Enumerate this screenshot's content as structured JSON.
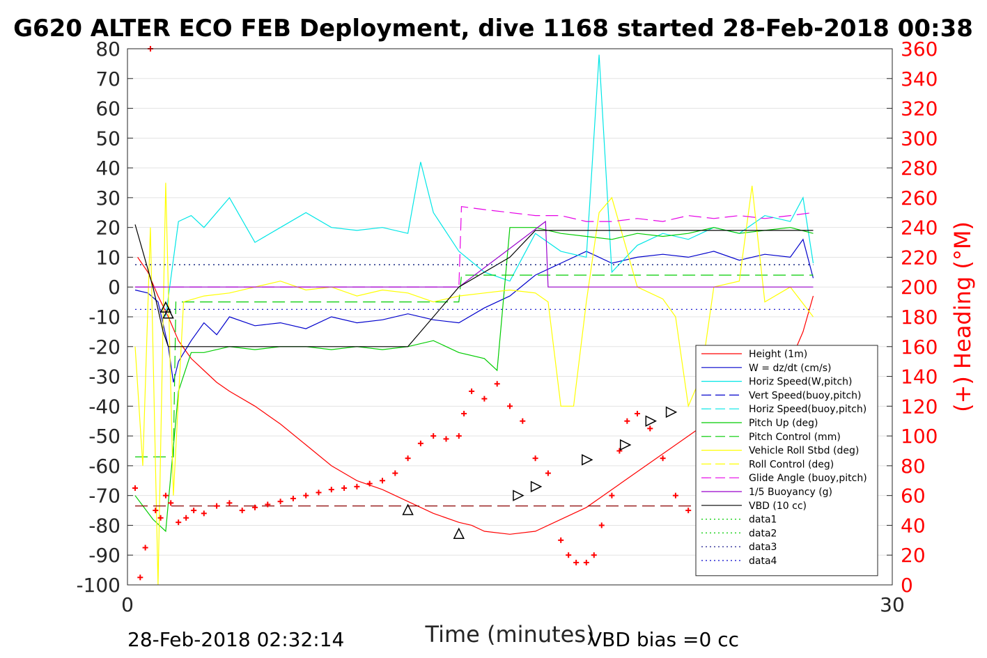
{
  "chart_data": {
    "type": "line",
    "title": "G620 ALTER ECO FEB Deployment, dive 1168 started 28-Feb-2018 00:38",
    "xlabel": "Time (minutes)",
    "ylabel_right": "(+) Heading (°M)",
    "footer_left": "28-Feb-2018 02:32:14",
    "footer_right": "VBD bias =0 cc",
    "xlim": [
      0,
      30
    ],
    "ylim": [
      -100,
      80
    ],
    "ylim_right": [
      0,
      360
    ],
    "x_ticks": [
      "0",
      "30"
    ],
    "y_ticks": [
      "80",
      "70",
      "60",
      "50",
      "40",
      "30",
      "20",
      "10",
      "0",
      "-10",
      "-20",
      "-30",
      "-40",
      "-50",
      "-60",
      "-70",
      "-80",
      "-90",
      "-100"
    ],
    "y_ticks_right": [
      "360",
      "340",
      "320",
      "300",
      "280",
      "260",
      "240",
      "220",
      "200",
      "180",
      "160",
      "140",
      "120",
      "100",
      "80",
      "60",
      "40",
      "20",
      "0"
    ],
    "grid": "horizontal",
    "legend_position": "bottom-right",
    "legend": [
      {
        "label": "Height (1m)",
        "color": "#ff0000",
        "dash": "solid"
      },
      {
        "label": "W = dz/dt (cm/s)",
        "color": "#0000cc",
        "dash": "solid"
      },
      {
        "label": "Horiz Speed(W,pitch)",
        "color": "#00e6e6",
        "dash": "solid"
      },
      {
        "label": "Vert Speed(buoy,pitch)",
        "color": "#0000cc",
        "dash": "dashed"
      },
      {
        "label": "Horiz Speed(buoy,pitch)",
        "color": "#00e6e6",
        "dash": "dashed"
      },
      {
        "label": "Pitch Up (deg)",
        "color": "#00cc00",
        "dash": "solid"
      },
      {
        "label": "Pitch Control (mm)",
        "color": "#00cc00",
        "dash": "dashed"
      },
      {
        "label": "Vehicle Roll Stbd (deg)",
        "color": "#ffff00",
        "dash": "solid"
      },
      {
        "label": "Roll Control (deg)",
        "color": "#ffff00",
        "dash": "dashed"
      },
      {
        "label": "Glide Angle (buoy,pitch)",
        "color": "#e600e6",
        "dash": "dashed"
      },
      {
        "label": "1/5 Buoyancy (g)",
        "color": "#9900cc",
        "dash": "solid"
      },
      {
        "label": "VBD (10 cc)",
        "color": "#000000",
        "dash": "solid"
      },
      {
        "label": "data1",
        "color": "#00cc00",
        "dash": "dotted"
      },
      {
        "label": "data2",
        "color": "#00cc00",
        "dash": "dotted"
      },
      {
        "label": "data3",
        "color": "#000080",
        "dash": "dotted"
      },
      {
        "label": "data4",
        "color": "#0000cc",
        "dash": "dotted"
      }
    ],
    "series": [
      {
        "name": "Height (1m)",
        "color": "#ff0000",
        "dash": "solid",
        "x": [
          0.4,
          0.8,
          1.2,
          1.6,
          2.0,
          2.5,
          3.0,
          3.5,
          4.0,
          5.0,
          6.0,
          7.0,
          8.0,
          9.0,
          10.0,
          11.0,
          12.0,
          13.0,
          13.5,
          14.0,
          15.0,
          16.0,
          17.0,
          18.0,
          19.0,
          20.0,
          21.0,
          22.0,
          23.0,
          24.0,
          25.0,
          26.0,
          26.5,
          26.9
        ],
        "y": [
          10,
          5,
          -3,
          -10,
          -18,
          -24,
          -28,
          -32,
          -35,
          -40,
          -46,
          -53,
          -60,
          -65,
          -68,
          -72,
          -76,
          -79,
          -80,
          -82,
          -83,
          -82,
          -78,
          -74,
          -68,
          -62,
          -56,
          -50,
          -44,
          -38,
          -32,
          -25,
          -15,
          -3
        ]
      },
      {
        "name": "W = dz/dt (cm/s)",
        "color": "#0000cc",
        "dash": "solid",
        "x": [
          0.3,
          0.8,
          1.2,
          1.6,
          1.8,
          2.0,
          2.5,
          3.0,
          3.5,
          4.0,
          5.0,
          6.0,
          7.0,
          8.0,
          9.0,
          10.0,
          11.0,
          12.0,
          13.0,
          14.0,
          15.0,
          16.0,
          17.0,
          18.0,
          19.0,
          20.0,
          21.0,
          22.0,
          23.0,
          24.0,
          25.0,
          26.0,
          26.5,
          26.9
        ],
        "y": [
          -1,
          -2,
          -5,
          -20,
          -32,
          -25,
          -18,
          -12,
          -16,
          -10,
          -13,
          -12,
          -14,
          -10,
          -12,
          -11,
          -9,
          -11,
          -12,
          -7,
          -3,
          4,
          8,
          12,
          8,
          10,
          11,
          10,
          12,
          9,
          11,
          10,
          16,
          3
        ]
      },
      {
        "name": "Horiz Speed(W,pitch)",
        "color": "#00e6e6",
        "dash": "solid",
        "x": [
          1.5,
          2.0,
          2.5,
          3.0,
          4.0,
          5.0,
          6.0,
          7.0,
          8.0,
          9.0,
          10.0,
          11.0,
          11.5,
          12.0,
          13.0,
          14.0,
          15.0,
          16.0,
          17.0,
          18.0,
          18.5,
          19.0,
          20.0,
          21.0,
          22.0,
          23.0,
          24.0,
          25.0,
          26.0,
          26.5,
          26.9
        ],
        "y": [
          -10,
          22,
          24,
          20,
          30,
          15,
          20,
          25,
          20,
          19,
          20,
          18,
          42,
          25,
          12,
          5,
          2,
          18,
          12,
          10,
          78,
          5,
          14,
          18,
          16,
          20,
          18,
          24,
          22,
          30,
          8
        ]
      },
      {
        "name": "Pitch Up (deg)",
        "color": "#00cc00",
        "dash": "solid",
        "x": [
          0.3,
          1.0,
          1.5,
          2.0,
          2.5,
          3.0,
          4.0,
          5.0,
          6.0,
          7.0,
          8.0,
          9.0,
          10.0,
          11.0,
          12.0,
          13.0,
          14.0,
          14.5,
          15.0,
          16.0,
          17.0,
          18.0,
          19.0,
          20.0,
          21.0,
          22.0,
          23.0,
          24.0,
          25.0,
          26.0,
          26.9
        ],
        "y": [
          -70,
          -78,
          -82,
          -35,
          -22,
          -22,
          -20,
          -21,
          -20,
          -20,
          -21,
          -20,
          -21,
          -20,
          -18,
          -22,
          -24,
          -28,
          20,
          20,
          18,
          17,
          16,
          18,
          17,
          18,
          20,
          18,
          19,
          20,
          18
        ]
      },
      {
        "name": "Pitch Control (mm)",
        "color": "#00cc00",
        "dash": "dashed",
        "x": [
          0.3,
          1.8,
          1.9,
          13.0,
          13.1,
          26.9
        ],
        "y": [
          -57,
          -57,
          -5,
          -5,
          4,
          4
        ]
      },
      {
        "name": "Vehicle Roll Stbd (deg)",
        "color": "#ffff00",
        "dash": "solid",
        "x": [
          0.3,
          0.6,
          0.9,
          1.2,
          1.5,
          1.8,
          2.2,
          3.0,
          4.0,
          5.0,
          6.0,
          7.0,
          8.0,
          9.0,
          10.0,
          11.0,
          12.0,
          13.0,
          14.0,
          15.0,
          16.0,
          16.5,
          17.0,
          17.5,
          18.0,
          18.5,
          19.0,
          20.0,
          21.0,
          21.5,
          22.0,
          22.5,
          23.0,
          24.0,
          24.5,
          25.0,
          26.0,
          26.9
        ],
        "y": [
          -20,
          -60,
          20,
          -100,
          35,
          -70,
          -5,
          -3,
          -2,
          0,
          2,
          -1,
          0,
          -3,
          -1,
          -2,
          -5,
          -3,
          -2,
          -1,
          -2,
          -5,
          -40,
          -40,
          -5,
          25,
          30,
          0,
          -4,
          -10,
          -40,
          -30,
          0,
          2,
          34,
          -5,
          0,
          -10
        ]
      },
      {
        "name": "Glide Angle (buoy,pitch)",
        "color": "#e600e6",
        "dash": "dashed",
        "x": [
          0.3,
          13.0,
          13.1,
          14.0,
          15.0,
          16.0,
          17.0,
          18.0,
          19.0,
          20.0,
          21.0,
          22.0,
          23.0,
          24.0,
          25.0,
          26.0,
          26.9
        ],
        "y": [
          0,
          0,
          27,
          26,
          25,
          24,
          24,
          22,
          22,
          23,
          22,
          24,
          23,
          24,
          23,
          24,
          25
        ]
      },
      {
        "name": "1/5 Buoyancy (g)",
        "color": "#9900cc",
        "dash": "solid",
        "x": [
          0.3,
          13.0,
          16.4,
          16.5,
          26.9
        ],
        "y": [
          0,
          0,
          22,
          0,
          0
        ]
      },
      {
        "name": "VBD (10 cc)",
        "color": "#000000",
        "dash": "solid",
        "x": [
          0.3,
          1.0,
          1.4,
          1.6,
          7.0,
          11.0,
          13.0,
          15.0,
          16.0,
          20.0,
          26.9
        ],
        "y": [
          21,
          0,
          -15,
          -20,
          -20,
          -20,
          0,
          10,
          19,
          19,
          19
        ]
      },
      {
        "name": "data1",
        "color": "#00cc00",
        "dash": "dotted",
        "x": [
          0.3,
          26.9
        ],
        "y": [
          7.5,
          7.5
        ]
      },
      {
        "name": "data3",
        "color": "#000080",
        "dash": "dotted",
        "x": [
          0.3,
          26.9
        ],
        "y": [
          7.5,
          7.5
        ]
      },
      {
        "name": "data4",
        "color": "#0000cc",
        "dash": "dotted",
        "x": [
          0.3,
          26.9
        ],
        "y": [
          -7.5,
          -7.5
        ]
      },
      {
        "name": "Roll Control (deg)",
        "color": "#8b0000",
        "dash": "dashed",
        "x": [
          0.3,
          26.9
        ],
        "y": [
          -73.5,
          -73.5
        ]
      }
    ],
    "heading": {
      "color": "#ff0000",
      "marker": "+",
      "axis": "right",
      "x": [
        0.3,
        0.5,
        0.7,
        0.9,
        1.1,
        1.3,
        1.5,
        1.7,
        2.0,
        2.3,
        2.6,
        3.0,
        3.5,
        4.0,
        4.5,
        5.0,
        5.5,
        6.0,
        6.5,
        7.0,
        7.5,
        8.0,
        8.5,
        9.0,
        9.5,
        10.0,
        10.5,
        11.0,
        11.5,
        12.0,
        12.5,
        13.0,
        13.2,
        13.5,
        14.0,
        14.5,
        15.0,
        15.5,
        16.0,
        16.5,
        17.0,
        17.3,
        17.6,
        18.0,
        18.3,
        18.6,
        19.0,
        19.3,
        19.6,
        20.0,
        20.5,
        21.0,
        21.5,
        22.0,
        22.5,
        23.0,
        23.5,
        24.0,
        24.5,
        25.0,
        25.5,
        26.0,
        26.5,
        26.9
      ],
      "y": [
        65,
        5,
        25,
        360,
        50,
        45,
        60,
        55,
        42,
        45,
        50,
        48,
        53,
        55,
        50,
        52,
        54,
        56,
        58,
        60,
        62,
        64,
        65,
        66,
        68,
        70,
        75,
        85,
        95,
        100,
        98,
        100,
        115,
        130,
        125,
        135,
        120,
        110,
        85,
        75,
        30,
        20,
        15,
        15,
        20,
        40,
        60,
        90,
        110,
        115,
        105,
        85,
        60,
        50,
        45,
        43,
        40,
        60,
        70,
        65,
        55,
        60,
        65,
        62
      ]
    },
    "markers": {
      "color": "#000000",
      "up_triangles": {
        "x": [
          1.5,
          1.6,
          11.0,
          13.0
        ],
        "y": [
          -7,
          -9,
          -75,
          -83
        ]
      },
      "right_triangles": {
        "x": [
          15.3,
          16.0,
          18.0,
          19.5,
          20.5,
          21.3,
          23.0
        ],
        "y": [
          -70,
          -67,
          -58,
          -53,
          -45,
          -42,
          -32
        ]
      }
    }
  }
}
